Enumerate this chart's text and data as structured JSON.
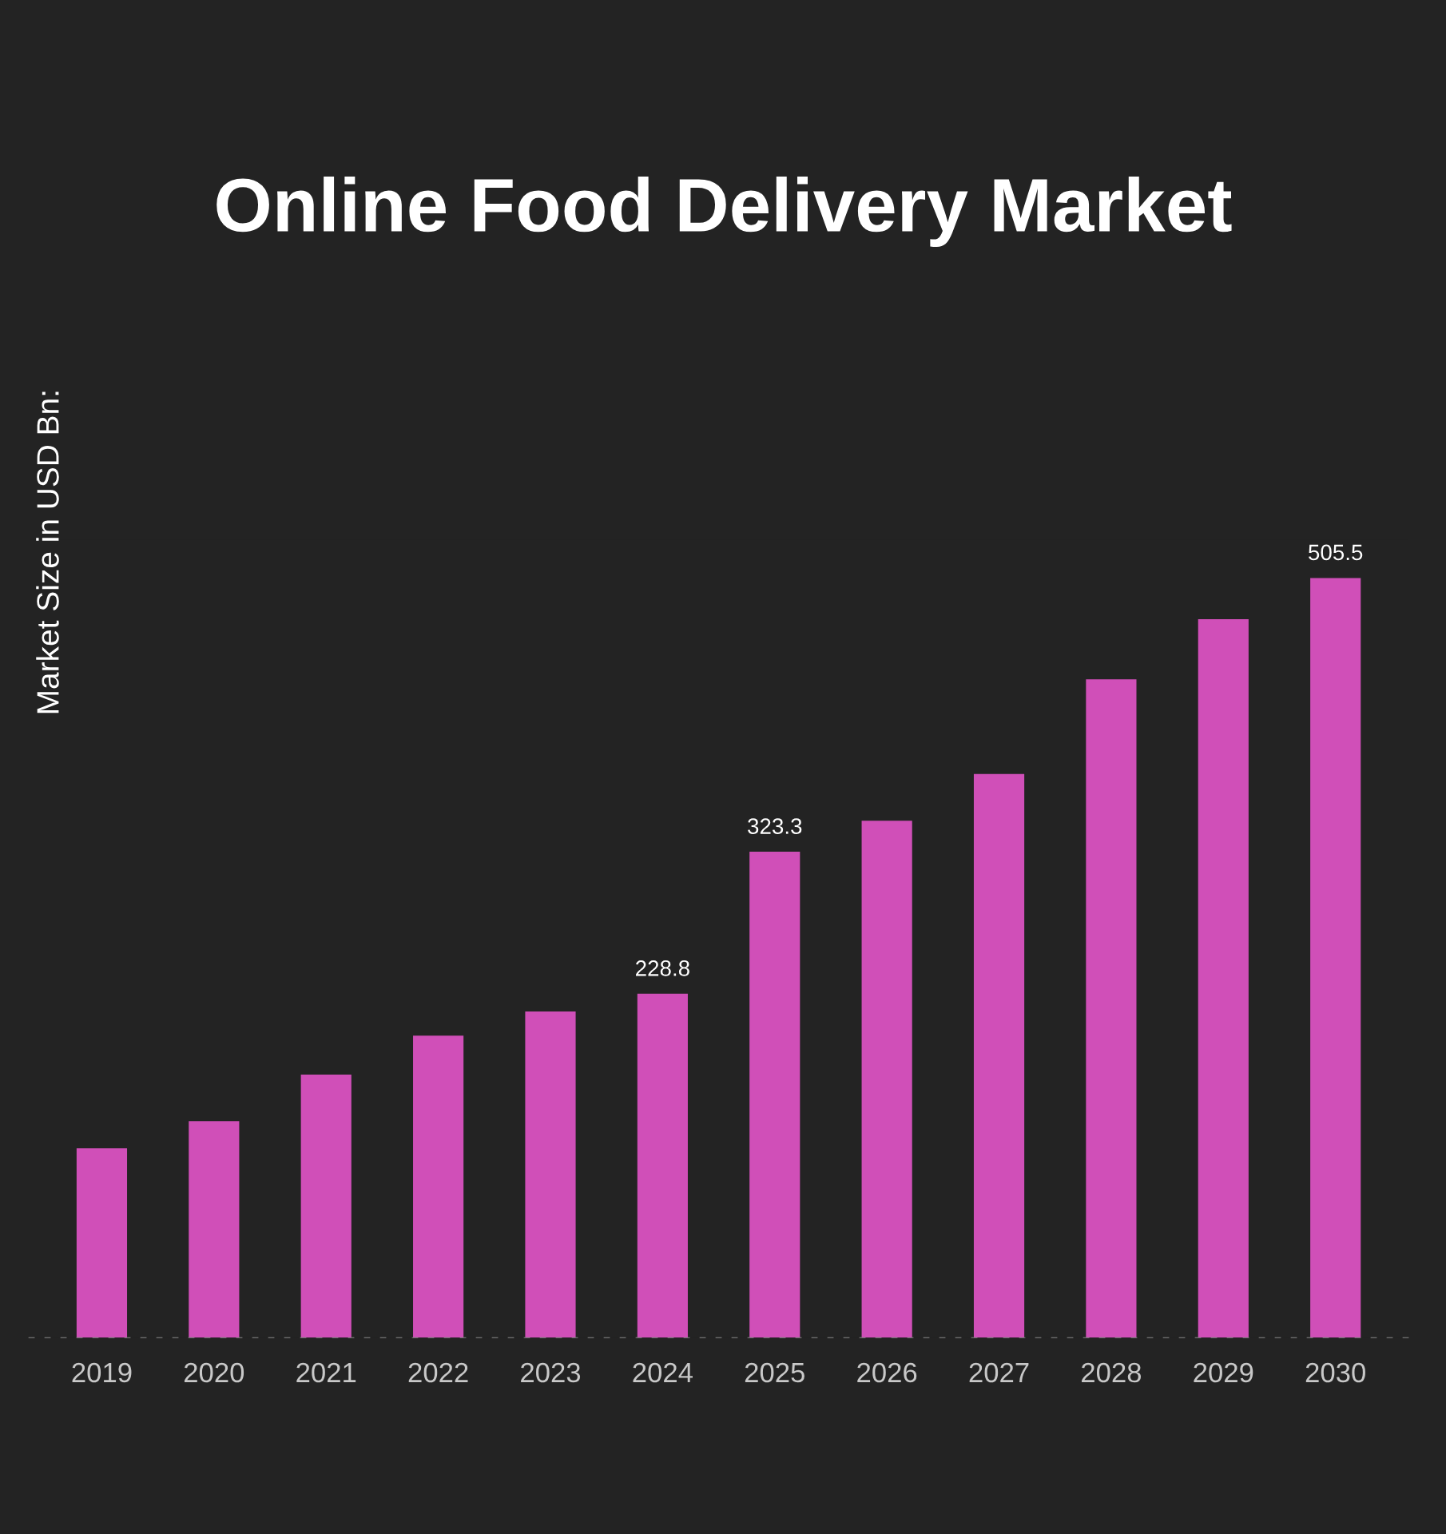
{
  "chart_data": {
    "type": "bar",
    "title": "Online Food Delivery Market",
    "ylabel": "Market Size in USD Bn:",
    "categories": [
      "2019",
      "2020",
      "2021",
      "2022",
      "2023",
      "2024",
      "2025",
      "2026",
      "2027",
      "2028",
      "2029",
      "2030"
    ],
    "tick_labels": "x",
    "values": [
      126,
      144,
      175,
      201,
      217,
      228.8,
      323.3,
      344,
      375,
      438,
      478,
      505.5
    ],
    "value_labels": [
      null,
      null,
      null,
      null,
      null,
      "228.8",
      "323.3",
      null,
      null,
      null,
      null,
      "505.5"
    ],
    "color": "#d04fb8",
    "grid": false,
    "legend": false
  }
}
